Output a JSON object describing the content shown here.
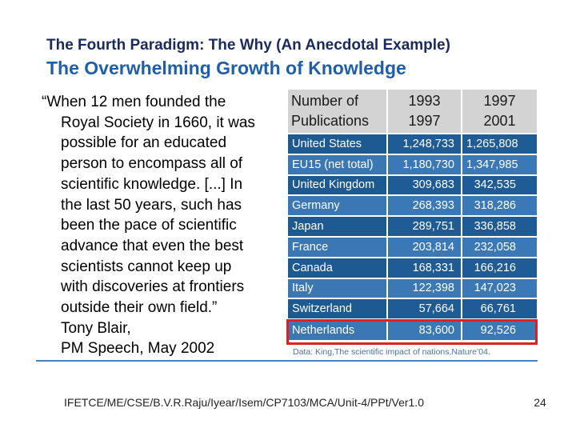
{
  "slide": {
    "title_line1": "The Fourth Paradigm: The Why (An Anecdotal Example)",
    "title_line2": "The Overwhelming Growth of Knowledge",
    "quote_lines": [
      "“When 12 men founded the",
      "Royal Society in 1660, it was",
      "possible for an educated",
      "person to encompass all of",
      "scientific knowledge. [...] In",
      "the last 50 years, such has",
      "been the pace of scientific",
      "advance that even the best",
      "scientists cannot keep up",
      "with discoveries at frontiers",
      "outside their own field.”",
      "Tony Blair,",
      "PM Speech, May 2002"
    ],
    "source": "Data: King,The scientific impact of nations,Nature’04.",
    "footer": "IFETCE/ME/CSE/B.V.R.Raju/Iyear/Isem/CP7103/MCA/Unit-4/PPt/Ver1.0",
    "page_number": "24",
    "highlighted_row": "Netherlands"
  },
  "table": {
    "header": {
      "country": [
        "Number of",
        "Publications"
      ],
      "period_a": [
        "1993",
        "1997"
      ],
      "period_b": [
        "1997",
        "2001"
      ]
    },
    "rows": [
      {
        "country": "United States",
        "a": "1,248,733",
        "b": "1,265,808"
      },
      {
        "country": "EU15 (net total)",
        "a": "1,180,730",
        "b": "1,347,985"
      },
      {
        "country": "United Kingdom",
        "a": "309,683",
        "b": "342,535"
      },
      {
        "country": "Germany",
        "a": "268,393",
        "b": "318,286"
      },
      {
        "country": "Japan",
        "a": "289,751",
        "b": "336,858"
      },
      {
        "country": "France",
        "a": "203,814",
        "b": "232,058"
      },
      {
        "country": "Canada",
        "a": "168,331",
        "b": "166,216"
      },
      {
        "country": "Italy",
        "a": "122,398",
        "b": "147,023"
      },
      {
        "country": "Switzerland",
        "a": "57,664",
        "b": "66,761"
      },
      {
        "country": "Netherlands",
        "a": "83,600",
        "b": "92,526"
      }
    ]
  },
  "colors": {
    "title_dark": "#1a2a5e",
    "title_blue": "#1f5ea8",
    "row_dark": "#1d5a92",
    "row_light": "#3a77b3",
    "highlight": "#e02020"
  }
}
